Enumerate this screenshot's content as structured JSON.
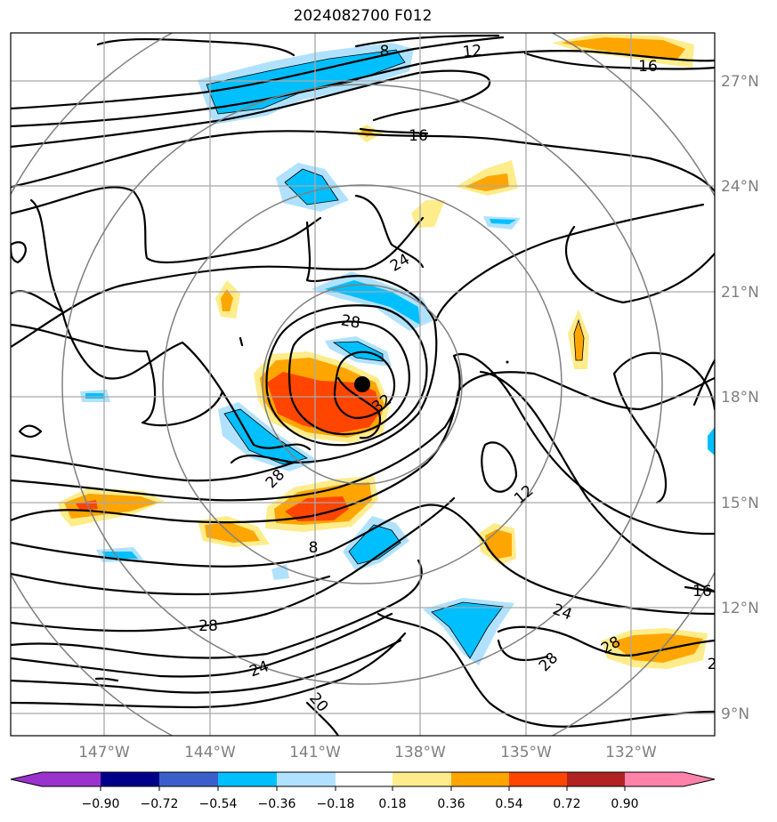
{
  "title": "2024082700 F012",
  "map": {
    "lon_labels": [
      "147°W",
      "144°W",
      "141°W",
      "138°W",
      "135°W",
      "132°W"
    ],
    "lat_labels": [
      "27°N",
      "24°N",
      "21°N",
      "18°N",
      "15°N",
      "12°N",
      "9°N"
    ],
    "contour_labels": [
      "8",
      "12",
      "16",
      "16",
      "24",
      "28",
      "32",
      "28",
      "12",
      "8",
      "16",
      "24",
      "28",
      "28",
      "28",
      "24",
      "20",
      "2"
    ],
    "range_rings": 4,
    "center_marker": "storm-center-dot"
  },
  "colorbar": {
    "ticks": [
      "−0.90",
      "−0.72",
      "−0.54",
      "−0.36",
      "−0.18",
      "0.18",
      "0.36",
      "0.54",
      "0.72",
      "0.90"
    ],
    "colors": [
      "#9a32cd",
      "#00008b",
      "#3a5fcd",
      "#00bfff",
      "#b0e2ff",
      "#ffffff",
      "#ffec8b",
      "#ffa500",
      "#ff4500",
      "#b22222",
      "#ff82ab"
    ]
  }
}
